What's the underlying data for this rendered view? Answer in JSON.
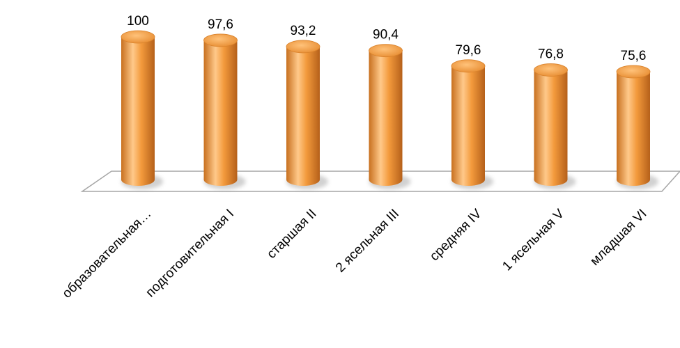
{
  "chart_data": {
    "type": "bar",
    "style": "3d-cylinder",
    "categories": [
      "образовательная…",
      "подготовительная I",
      "старшая II",
      "2 ясельная III",
      "средняя IV",
      "1 ясельная V",
      "младшая VI"
    ],
    "values": [
      100,
      97.6,
      93.2,
      90.4,
      79.6,
      76.8,
      75.6
    ],
    "data_labels": [
      "100",
      "97,6",
      "93,2",
      "90,4",
      "79,6",
      "76,8",
      "75,6"
    ],
    "title": "",
    "xlabel": "",
    "ylabel": "",
    "ylim": [
      0,
      100
    ],
    "grid": false,
    "legend": "none",
    "colors": {
      "bar": "#F39A3C",
      "bar_dark": "#B9651A",
      "bar_light": "#FFD7A6",
      "floor": "#FFFFFF",
      "floor_edge": "#A6A6A6"
    }
  }
}
